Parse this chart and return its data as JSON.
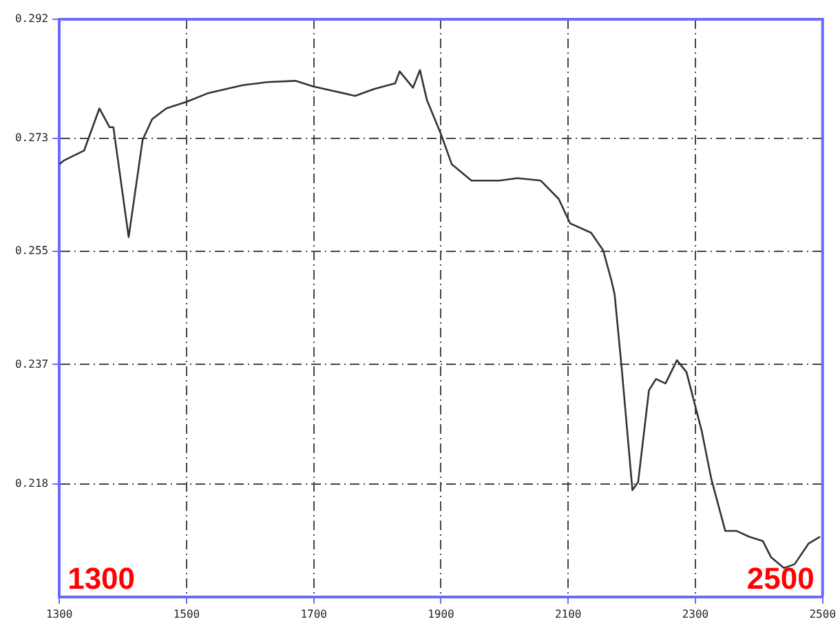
{
  "chart_data": {
    "type": "line",
    "x": [
      1300,
      1307,
      1339,
      1363,
      1379,
      1385,
      1409,
      1431,
      1446,
      1468,
      1501,
      1533,
      1588,
      1627,
      1671,
      1699,
      1765,
      1795,
      1828,
      1835,
      1856,
      1867,
      1878,
      1900,
      1917,
      1948,
      1992,
      2020,
      2057,
      2085,
      2103,
      2136,
      2155,
      2168,
      2173,
      2184,
      2201,
      2210,
      2227,
      2238,
      2253,
      2271,
      2286,
      2299,
      2310,
      2325,
      2347,
      2365,
      2384,
      2406,
      2419,
      2439,
      2456,
      2478,
      2496
    ],
    "series": [
      {
        "color": "#333333",
        "values": [
          0.2689,
          0.2695,
          0.2711,
          0.2778,
          0.2748,
          0.2748,
          0.2573,
          0.2728,
          0.2761,
          0.2778,
          0.2789,
          0.2802,
          0.2815,
          0.282,
          0.2822,
          0.2813,
          0.2798,
          0.2809,
          0.2818,
          0.2837,
          0.2811,
          0.2839,
          0.2791,
          0.2737,
          0.2689,
          0.2663,
          0.2663,
          0.2667,
          0.2663,
          0.2634,
          0.2595,
          0.258,
          0.2552,
          0.2504,
          0.2482,
          0.2366,
          0.217,
          0.2183,
          0.2329,
          0.2347,
          0.234,
          0.2377,
          0.2358,
          0.2307,
          0.2264,
          0.2188,
          0.2105,
          0.2105,
          0.2096,
          0.2089,
          0.2063,
          0.2046,
          0.2052,
          0.2085,
          0.2096
        ]
      }
    ],
    "xlim": [
      1300,
      2500
    ],
    "xticks": [
      1300,
      1500,
      1700,
      1900,
      2100,
      2300,
      2500
    ],
    "ylim": [
      0.2,
      0.292
    ],
    "yticks": [
      0.218,
      0.237,
      0.255,
      0.273,
      0.292
    ],
    "annotations": [
      "1300",
      "2500"
    ],
    "grid": true,
    "legend": false,
    "marker": "none",
    "line_style": "solid"
  }
}
